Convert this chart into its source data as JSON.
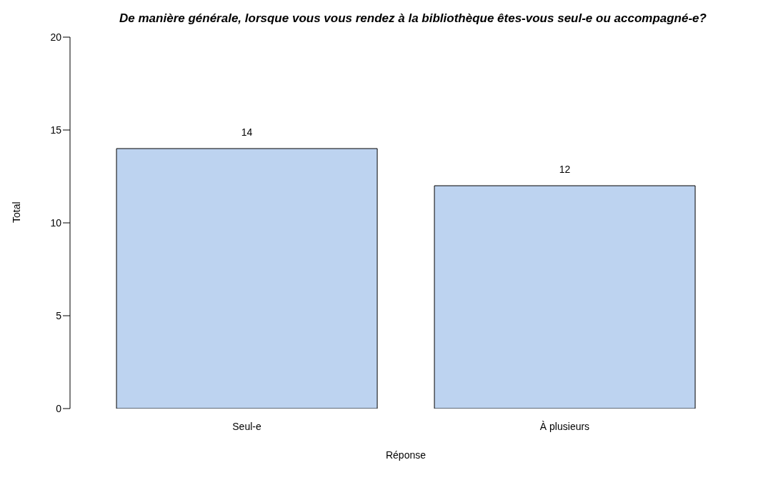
{
  "chart_data": {
    "type": "bar",
    "title": "De manière générale, lorsque vous vous rendez à la bibliothèque êtes-vous seul-e ou accompagné-e?",
    "xlabel": "Réponse",
    "ylabel": "Total",
    "categories": [
      "Seul-e",
      "À plusieurs"
    ],
    "values": [
      14,
      12
    ],
    "color": "#bdd3f0",
    "ylim": [
      0,
      20
    ],
    "yticks": [
      0,
      5,
      10,
      15,
      20
    ],
    "data_labels": true,
    "grid": false,
    "legend": false
  }
}
